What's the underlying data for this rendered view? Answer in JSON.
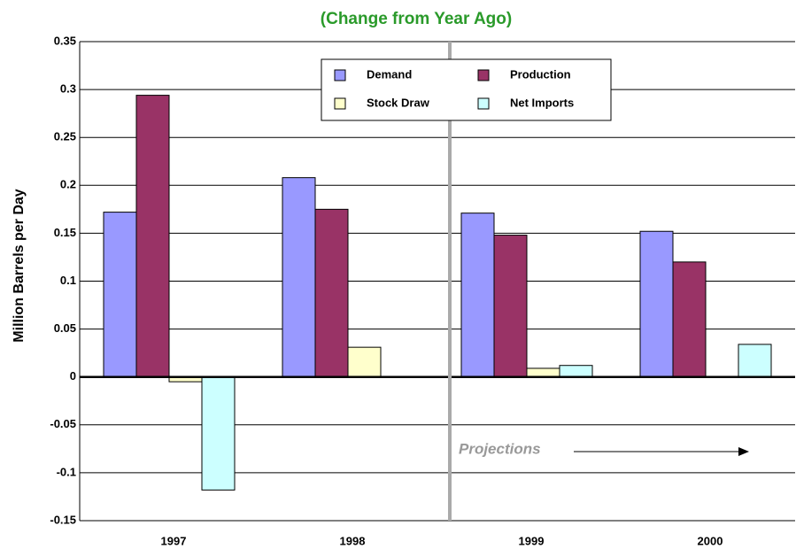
{
  "chart_data": {
    "type": "bar",
    "title": "(Change from Year Ago)",
    "y_label": "Million Barrels per Day",
    "annotation": "Projections",
    "categories": [
      "1997",
      "1998",
      "1999",
      "2000"
    ],
    "series": [
      {
        "name": "Demand",
        "color": "#9999ff",
        "values": [
          0.172,
          0.208,
          0.171,
          0.152
        ]
      },
      {
        "name": "Production",
        "color": "#993366",
        "values": [
          0.294,
          0.175,
          0.148,
          0.12
        ]
      },
      {
        "name": "Stock Draw",
        "color": "#ffffcc",
        "values": [
          -0.005,
          0.031,
          0.009,
          0
        ]
      },
      {
        "name": "Net Imports",
        "color": "#ccffff",
        "values": [
          -0.118,
          0,
          0.012,
          0.034
        ]
      }
    ],
    "ylim": [
      -0.15,
      0.35
    ],
    "yticks": [
      -0.15,
      -0.1,
      -0.05,
      0,
      0.05,
      0.1,
      0.15,
      0.2,
      0.25,
      0.3,
      0.35
    ],
    "grid": true,
    "legend": "top"
  }
}
